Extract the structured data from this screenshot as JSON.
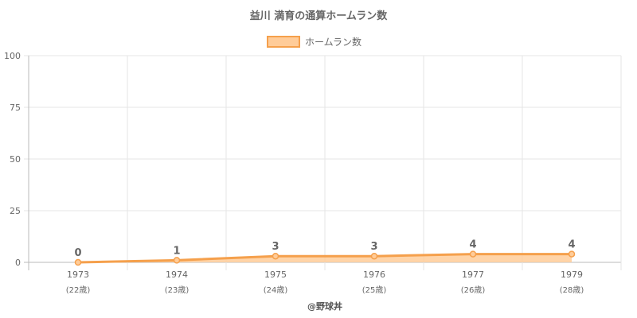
{
  "chart_data": {
    "type": "area",
    "title": "益川 満育の通算ホームラン数",
    "categories": [
      "1973",
      "1974",
      "1975",
      "1976",
      "1977",
      "1979"
    ],
    "ages": [
      "(22歳)",
      "(23歳)",
      "(24歳)",
      "(25歳)",
      "(26歳)",
      "(28歳)"
    ],
    "series": [
      {
        "name": "ホームラン数",
        "values": [
          0,
          1,
          3,
          3,
          4,
          4
        ]
      }
    ],
    "ylim": [
      0,
      100
    ],
    "yticks": [
      0,
      25,
      50,
      75,
      100
    ],
    "grid": true,
    "legend": "top",
    "data_labels": true
  },
  "credit": "@野球丼",
  "colors": {
    "line": "#f5a04c",
    "fill": "#ffcc99",
    "grid": "#e5e5e5",
    "axis": "#bbbbbb",
    "text": "#666666"
  }
}
